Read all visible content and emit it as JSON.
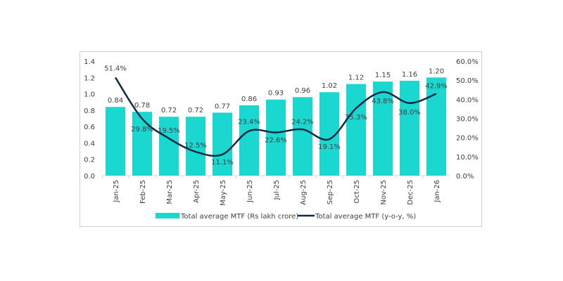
{
  "chart_data": {
    "type": "bar+line",
    "categories": [
      "Jan-25",
      "Feb-25",
      "Mar-25",
      "Apr-25",
      "May-25",
      "Jun-25",
      "Jul-25",
      "Aug-25",
      "Sep-25",
      "Oct-25",
      "Nov-25",
      "Dec-25",
      "Jan-26"
    ],
    "series": [
      {
        "name": "Total average MTF (Rs lakh crore)",
        "type": "bar",
        "axis": "left",
        "color": "#1ad8d0",
        "values": [
          0.84,
          0.78,
          0.72,
          0.72,
          0.77,
          0.86,
          0.93,
          0.96,
          1.02,
          1.12,
          1.15,
          1.16,
          1.2
        ],
        "labels": [
          "0.84",
          "0.78",
          "0.72",
          "0.72",
          "0.77",
          "0.86",
          "0.93",
          "0.96",
          "1.02",
          "1.12",
          "1.15",
          "1.16",
          "1.20"
        ]
      },
      {
        "name": "Total average MTF (y-o-y, %)",
        "type": "line",
        "axis": "right",
        "color": "#0f2a44",
        "values": [
          51.4,
          29.8,
          19.5,
          12.5,
          11.1,
          23.4,
          22.6,
          24.2,
          19.1,
          35.3,
          43.8,
          38.0,
          42.9
        ],
        "labels": [
          "51.4%",
          "29.8%",
          "19.5%",
          "12.5%",
          "11.1%",
          "23.4%",
          "22.6%",
          "24.2%",
          "19.1%",
          "35.3%",
          "43.8%",
          "38.0%",
          "42.9%"
        ]
      }
    ],
    "left_axis": {
      "ylim": [
        0,
        1.4
      ],
      "ticks": [
        "0.0",
        "0.2",
        "0.4",
        "0.6",
        "0.8",
        "1.0",
        "1.2",
        "1.4"
      ]
    },
    "right_axis": {
      "ylim": [
        0,
        60
      ],
      "ticks": [
        "0.0%",
        "10.0%",
        "20.0%",
        "30.0%",
        "40.0%",
        "50.0%",
        "60.0%"
      ]
    },
    "grid": false,
    "legend": "bottom"
  }
}
